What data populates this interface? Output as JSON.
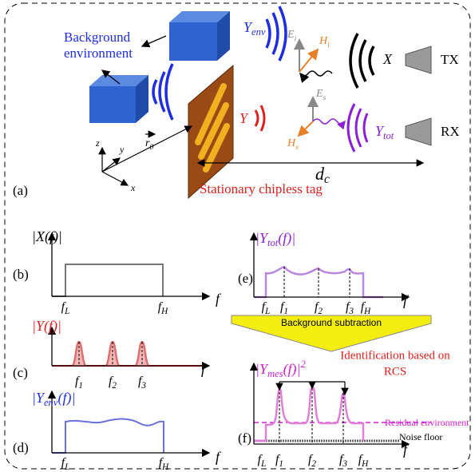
{
  "panel_a": {
    "label": "(a)",
    "background": [
      "Background",
      "environment"
    ],
    "y_env": [
      {
        "text": "Y"
      },
      {
        "text": "env",
        "sub": true
      }
    ],
    "e_i": [
      {
        "text": "E"
      },
      {
        "text": "i",
        "sub": true
      }
    ],
    "h_i": [
      {
        "text": "H"
      },
      {
        "text": "i",
        "sub": true
      }
    ],
    "x_signal": "X",
    "tx": "TX",
    "y_tag": "Y",
    "e_s": [
      {
        "text": "E"
      },
      {
        "text": "s",
        "sub": true
      }
    ],
    "h_s": [
      {
        "text": "H"
      },
      {
        "text": "s",
        "sub": true
      }
    ],
    "y_tot": [
      {
        "text": "Y"
      },
      {
        "text": "tot",
        "sub": true
      }
    ],
    "rx": "RX",
    "position": [
      {
        "text": "r"
      },
      {
        "text": "0",
        "sub": true
      }
    ],
    "axes": [
      "z",
      "y",
      "x"
    ],
    "distance": [
      {
        "text": "d"
      },
      {
        "text": "c",
        "sub": true
      }
    ],
    "caption": "Stationary chipless tag"
  },
  "panels": [
    {
      "label": "(b)",
      "color": "#000000",
      "ylabel": [
        {
          "text": "|X(f)|"
        }
      ],
      "ticks": [
        [
          {
            "text": "f"
          },
          {
            "text": "L",
            "sub": true
          }
        ],
        [
          {
            "text": "f"
          },
          {
            "text": "H",
            "sub": true
          }
        ]
      ],
      "axis": "f"
    },
    {
      "label": "(c)",
      "color": "#e0201c",
      "ylabel": [
        {
          "text": "|Y(f)|"
        }
      ],
      "ticks": [
        [
          {
            "text": "f"
          },
          {
            "text": "1",
            "sub": true
          }
        ],
        [
          {
            "text": "f"
          },
          {
            "text": "2",
            "sub": true
          }
        ],
        [
          {
            "text": "f"
          },
          {
            "text": "3",
            "sub": true
          }
        ]
      ],
      "axis": "f"
    },
    {
      "label": "(d)",
      "color": "#1f2ee0",
      "ylabel": [
        {
          "text": "|Y"
        },
        {
          "text": "env",
          "sub": true
        },
        {
          "text": "(f)|"
        }
      ],
      "ticks": [
        [
          {
            "text": "f"
          },
          {
            "text": "L",
            "sub": true
          }
        ],
        [
          {
            "text": "f"
          },
          {
            "text": "H",
            "sub": true
          }
        ]
      ],
      "axis": "f"
    },
    {
      "label": "(e)",
      "color": "#8a1fd6",
      "ylabel": [
        {
          "text": "|Y"
        },
        {
          "text": "tot",
          "sub": true
        },
        {
          "text": "(f)|"
        }
      ],
      "ticks": [
        [
          {
            "text": "f"
          },
          {
            "text": "L",
            "sub": true
          }
        ],
        [
          {
            "text": "f"
          },
          {
            "text": "1",
            "sub": true
          }
        ],
        [
          {
            "text": "f"
          },
          {
            "text": "2",
            "sub": true
          }
        ],
        [
          {
            "text": "f"
          },
          {
            "text": "3",
            "sub": true
          }
        ],
        [
          {
            "text": "f"
          },
          {
            "text": "H",
            "sub": true
          }
        ]
      ],
      "axis": "f"
    },
    {
      "label": "(f)",
      "color": "#d21fd2",
      "ylabel": [
        {
          "text": "|Y"
        },
        {
          "text": "mes",
          "sub": true
        },
        {
          "text": "(f)|"
        },
        {
          "text": "2",
          "sup": true
        }
      ],
      "ticks": [
        [
          {
            "text": "f"
          },
          {
            "text": "L",
            "sub": true
          }
        ],
        [
          {
            "text": "f"
          },
          {
            "text": "1",
            "sub": true
          }
        ],
        [
          {
            "text": "f"
          },
          {
            "text": "2",
            "sub": true
          }
        ],
        [
          {
            "text": "f"
          },
          {
            "text": "3",
            "sub": true
          }
        ],
        [
          {
            "text": "f"
          },
          {
            "text": "H",
            "sub": true
          }
        ]
      ],
      "axis": "f"
    }
  ],
  "subtraction": "Background subtraction",
  "annotations": {
    "identification": [
      "Identification based on",
      "RCS"
    ],
    "residual": "Residual environment",
    "noise": "Noise floor"
  }
}
